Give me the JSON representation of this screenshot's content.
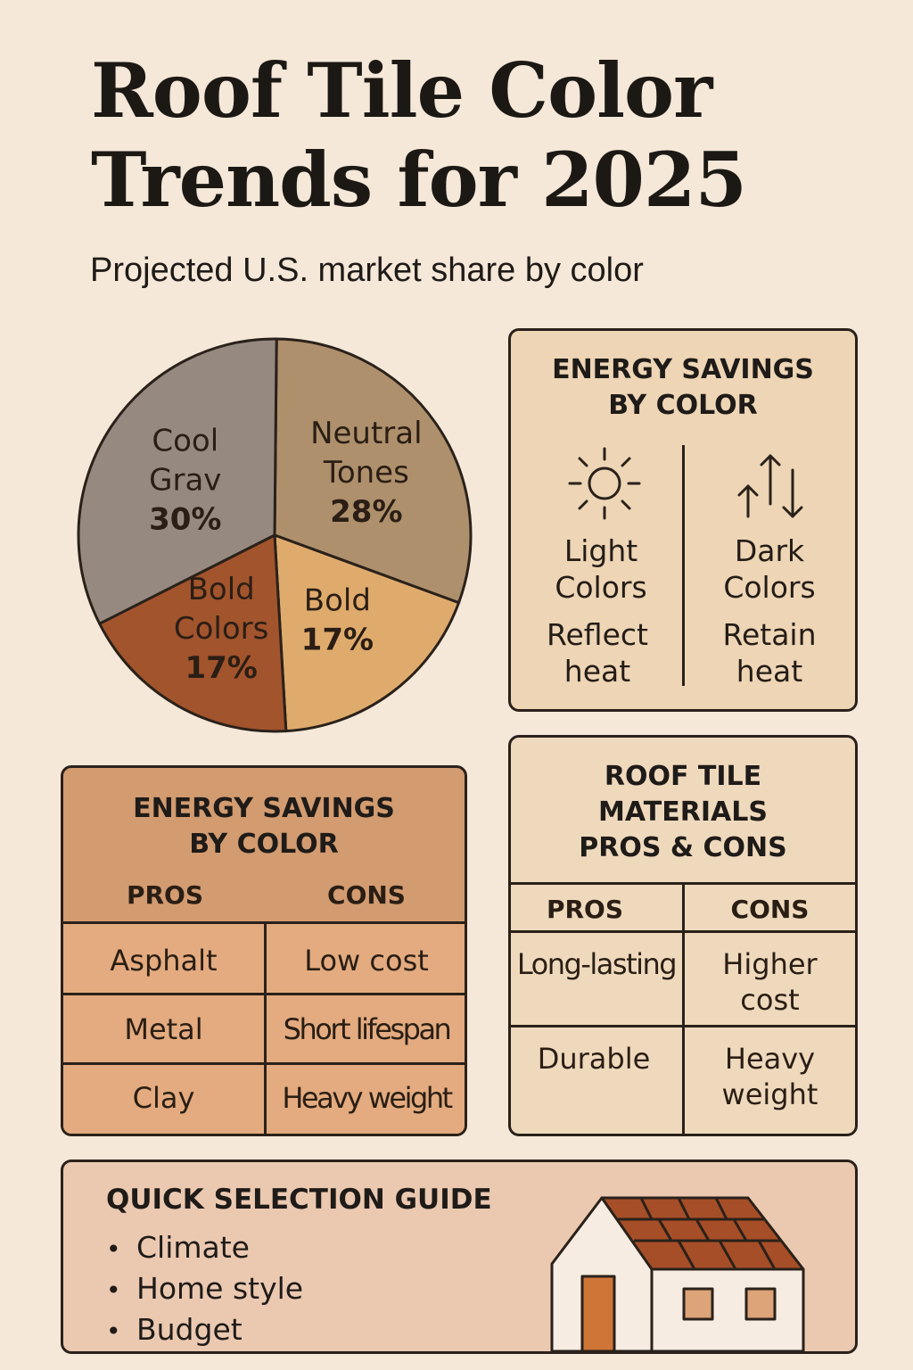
{
  "title": {
    "line1": "Roof Tile Color",
    "line2": "Trends for 2025"
  },
  "subtitle": "Projected U.S. market share by color",
  "chart_data": {
    "type": "pie",
    "title": "Projected U.S. market share by color",
    "slices": [
      {
        "lines": [
          "Neutral",
          "Tones",
          "28%"
        ],
        "value": 28,
        "color": "#ae906d"
      },
      {
        "lines": [
          "Bold",
          "17%"
        ],
        "value": 17,
        "color": "#dfab6d"
      },
      {
        "lines": [
          "Bold",
          "Colors",
          "17%"
        ],
        "value": 17,
        "color": "#a2542d"
      },
      {
        "lines": [
          "Cool",
          "Grav",
          "30%"
        ],
        "value": 30,
        "color": "#968a80"
      }
    ]
  },
  "energy_panel": {
    "heading_line1": "ENERGY SAVINGS",
    "heading_line2": "BY COLOR",
    "light": {
      "icon": "sun-icon",
      "label_line1": "Light",
      "label_line2": "Colors",
      "desc_line1": "Reflect",
      "desc_line2": "heat"
    },
    "dark": {
      "icon": "heat-exchange-arrows-icon",
      "label_line1": "Dark",
      "label_line2": "Colors",
      "desc_line1": "Retain",
      "desc_line2": "heat"
    }
  },
  "pros_cons_table": {
    "heading_line1": "ENERGY SAVINGS",
    "heading_line2": "BY COLOR",
    "col_pros": "PROS",
    "col_cons": "CONS",
    "rows": [
      {
        "pro": "Asphalt",
        "con": "Low cost"
      },
      {
        "pro": "Metal",
        "con": "Short lifespan"
      },
      {
        "pro": "Clay",
        "con": "Heavy weight"
      }
    ]
  },
  "materials_table": {
    "heading_line1": "ROOF TILE",
    "heading_line2": "MATERIALS",
    "heading_line3": "PROS & CONS",
    "col_pros": "PROS",
    "col_cons": "CONS",
    "rows": [
      {
        "pro": "Long-lasting",
        "con_line1": "Higher",
        "con_line2": "cost"
      },
      {
        "pro": "Durable",
        "con_line1": "Heavy",
        "con_line2": "weight"
      }
    ]
  },
  "guide": {
    "heading": "QUICK SELECTION GUIDE",
    "bullet": "•",
    "items": [
      "Climate",
      "Home style",
      "Budget"
    ]
  }
}
